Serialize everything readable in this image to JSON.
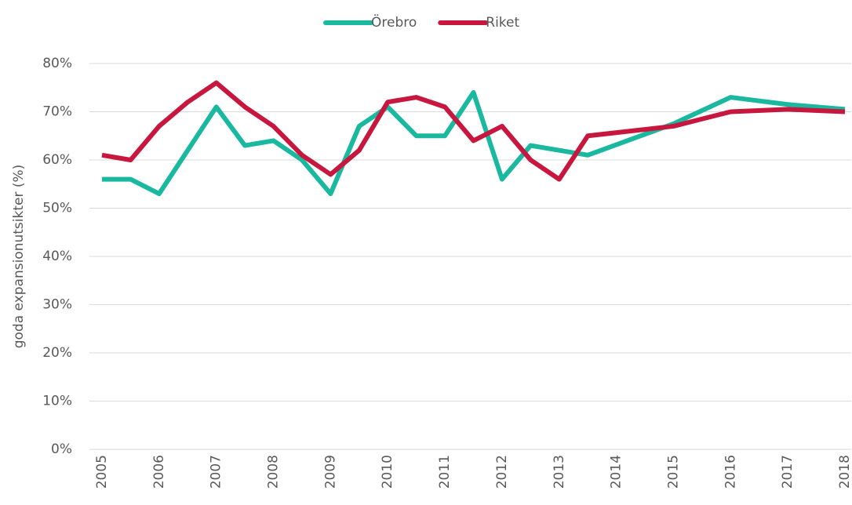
{
  "chart_data": {
    "type": "line",
    "y_label": "goda expansionutsikter (%)",
    "x": [
      2005,
      2005.5,
      2006,
      2006.5,
      2007,
      2007.5,
      2008,
      2008.5,
      2009,
      2009.5,
      2010,
      2010.5,
      2011,
      2011.5,
      2012,
      2012.5,
      2013,
      2013.5,
      2015,
      2016,
      2017,
      2018
    ],
    "series": [
      {
        "name": "Örebro",
        "color": "#1ab99f",
        "values": [
          56,
          56,
          53,
          62,
          71,
          63,
          64,
          60,
          53,
          67,
          71,
          65,
          65,
          74,
          56,
          63,
          62,
          61,
          67.5,
          73,
          71.5,
          70.5
        ]
      },
      {
        "name": "Riket",
        "color": "#c8173f",
        "values": [
          61,
          60,
          67,
          72,
          76,
          71,
          67,
          61,
          57,
          62,
          72,
          73,
          71,
          64,
          67,
          60,
          56,
          65,
          67,
          70,
          70.5,
          70
        ]
      }
    ],
    "xlim": [
      2005,
      2018
    ],
    "xticks": [
      2005,
      2006,
      2007,
      2008,
      2009,
      2010,
      2011,
      2012,
      2013,
      2014,
      2015,
      2016,
      2017,
      2018
    ],
    "ylim": [
      0,
      80
    ],
    "yticks": [
      {
        "value": 0,
        "label": "0%"
      },
      {
        "value": 10,
        "label": "10%"
      },
      {
        "value": 20,
        "label": "20%"
      },
      {
        "value": 30,
        "label": "30%"
      },
      {
        "value": 40,
        "label": "40%"
      },
      {
        "value": 50,
        "label": "50%"
      },
      {
        "value": 60,
        "label": "60%"
      },
      {
        "value": 70,
        "label": "70%"
      },
      {
        "value": 80,
        "label": "80%"
      }
    ],
    "grid": true,
    "legend": "top"
  }
}
